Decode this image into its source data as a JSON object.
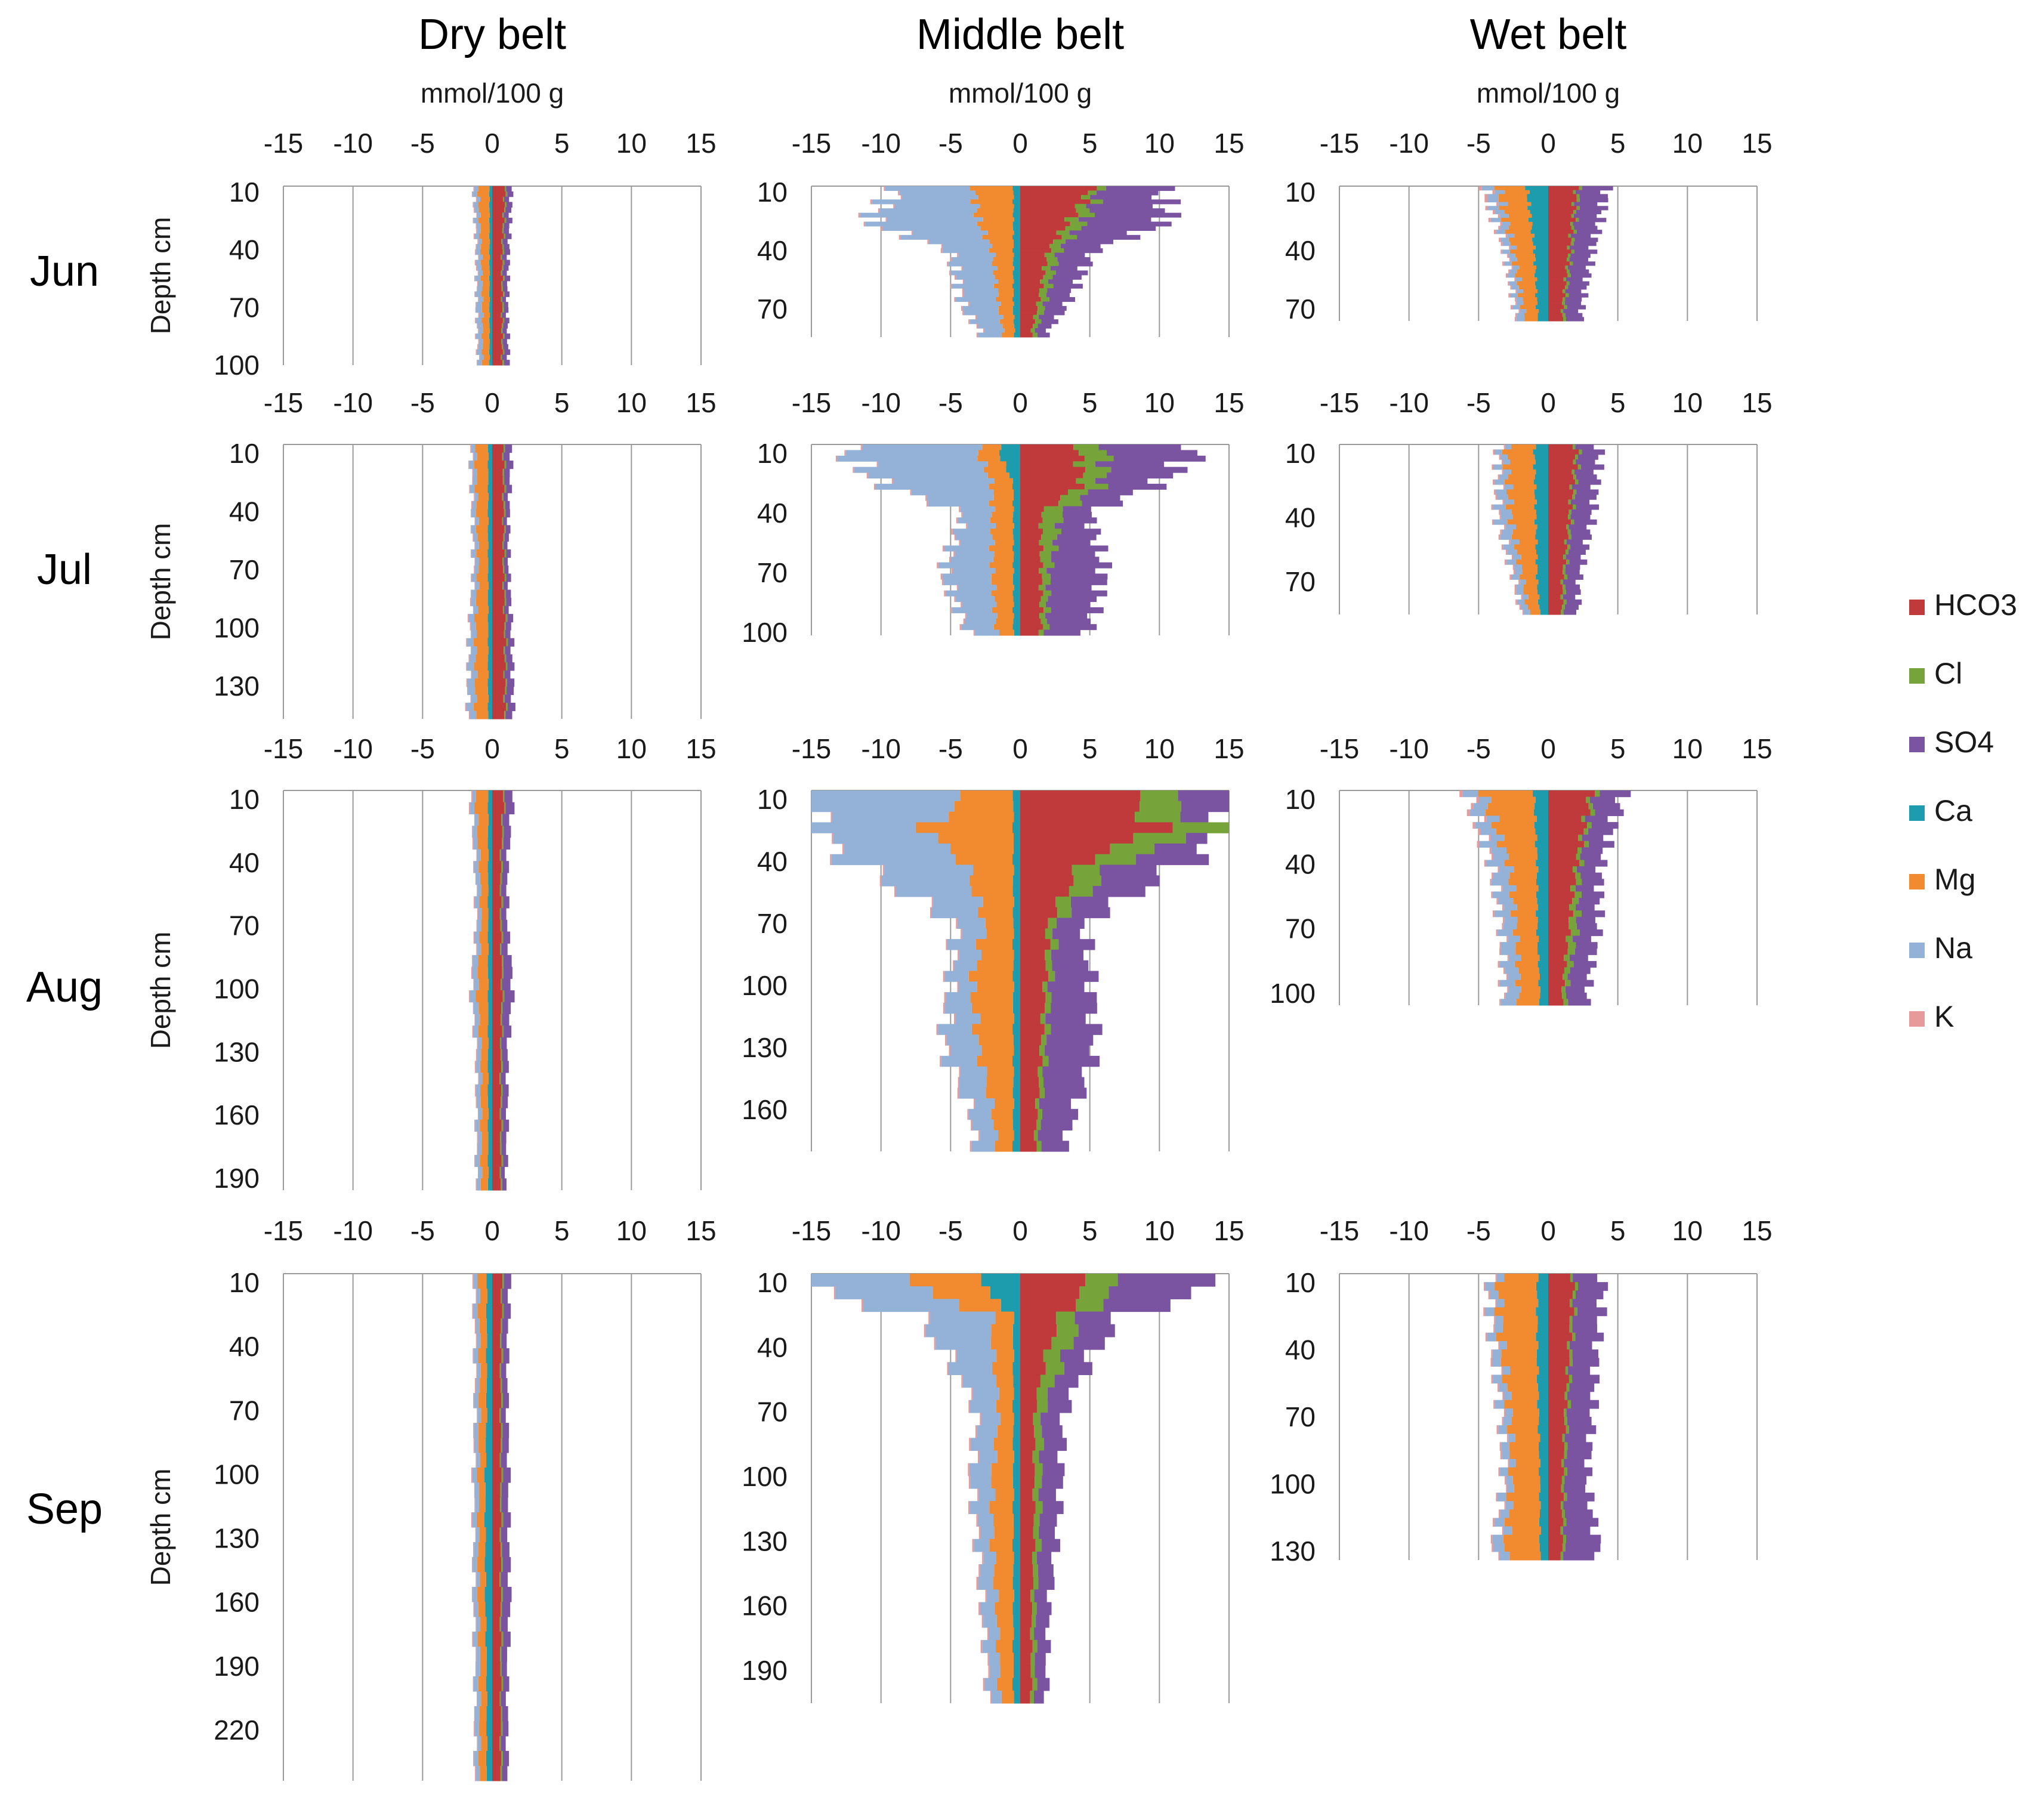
{
  "chart_data": {
    "type": "bar",
    "subtype": "diverging-stacked-horizontal",
    "belt_titles": [
      "Dry belt",
      "Middle belt",
      "Wet belt"
    ],
    "unit_label": "mmol/100 g",
    "months": [
      "Jun",
      "Jul",
      "Aug",
      "Sep"
    ],
    "ylabel": "Depth cm",
    "xlim": [
      -15,
      15
    ],
    "xticks": [
      -15,
      -10,
      -5,
      0,
      5,
      10,
      15
    ],
    "tick_labels": [
      "-15",
      "-10",
      "-5",
      "0",
      "5",
      "10",
      "15"
    ],
    "anions": [
      "HCO3",
      "Cl",
      "SO4"
    ],
    "cations": [
      "Ca",
      "Mg",
      "Na",
      "K"
    ],
    "legend": [
      {
        "name": "HCO3",
        "color": "#c0393b"
      },
      {
        "name": "Cl",
        "color": "#77a33b"
      },
      {
        "name": "SO4",
        "color": "#7a54a0"
      },
      {
        "name": "Ca",
        "color": "#1c9cac"
      },
      {
        "name": "Mg",
        "color": "#f28a30"
      },
      {
        "name": "Na",
        "color": "#94b2d8"
      },
      {
        "name": "K",
        "color": "#e69a9a"
      }
    ],
    "panels": [
      {
        "belt": "Dry belt",
        "month": "Jun",
        "depth_labels": [
          "10",
          "40",
          "70",
          "100"
        ],
        "anion_profile": [
          [
            10,
            0.9,
            0.1,
            0.4
          ],
          [
            40,
            0.7,
            0.1,
            0.4
          ],
          [
            70,
            0.7,
            0.1,
            0.3
          ],
          [
            100,
            0.7,
            0.1,
            0.4
          ]
        ],
        "cation_profile": [
          [
            10,
            0.2,
            0.8,
            0.3,
            0.05
          ],
          [
            40,
            0.2,
            0.6,
            0.3,
            0.05
          ],
          [
            70,
            0.2,
            0.5,
            0.4,
            0.05
          ],
          [
            100,
            0.2,
            0.5,
            0.3,
            0.05
          ]
        ]
      },
      {
        "belt": "Middle belt",
        "month": "Jun",
        "depth_labels": [
          "10",
          "40",
          "70"
        ],
        "anion_profile": [
          [
            10,
            5.0,
            0.6,
            4.5
          ],
          [
            25,
            3.5,
            1.2,
            6.0
          ],
          [
            40,
            2.0,
            0.8,
            2.5
          ],
          [
            70,
            1.2,
            0.5,
            1.5
          ],
          [
            82,
            0.8,
            0.3,
            0.8
          ]
        ],
        "cation_profile": [
          [
            10,
            0.5,
            2.8,
            5.5,
            0.1
          ],
          [
            25,
            0.5,
            2.5,
            8.0,
            0.1
          ],
          [
            40,
            0.5,
            1.5,
            3.0,
            0.1
          ],
          [
            70,
            0.5,
            1.0,
            2.5,
            0.1
          ],
          [
            82,
            0.4,
            0.8,
            1.5,
            0.1
          ]
        ]
      },
      {
        "belt": "Wet belt",
        "month": "Jun",
        "depth_labels": [
          "10",
          "40",
          "70"
        ],
        "anion_profile": [
          [
            10,
            2.0,
            0.2,
            2.0
          ],
          [
            40,
            1.5,
            0.2,
            1.5
          ],
          [
            70,
            1.0,
            0.2,
            1.2
          ],
          [
            80,
            1.0,
            0.2,
            1.2
          ]
        ],
        "cation_profile": [
          [
            10,
            1.5,
            2.0,
            0.8,
            0.2
          ],
          [
            40,
            1.0,
            1.5,
            0.5,
            0.1
          ],
          [
            70,
            0.8,
            1.0,
            0.5,
            0.1
          ],
          [
            80,
            0.6,
            0.8,
            0.6,
            0.1
          ]
        ]
      },
      {
        "belt": "Dry belt",
        "month": "Jul",
        "depth_labels": [
          "10",
          "40",
          "70",
          "100",
          "130"
        ],
        "anion_profile": [
          [
            10,
            0.8,
            0.1,
            0.5
          ],
          [
            40,
            0.8,
            0.1,
            0.3
          ],
          [
            70,
            0.8,
            0.1,
            0.3
          ],
          [
            100,
            0.9,
            0.1,
            0.4
          ],
          [
            130,
            0.9,
            0.1,
            0.5
          ]
        ],
        "cation_profile": [
          [
            10,
            0.3,
            0.9,
            0.3,
            0.05
          ],
          [
            40,
            0.3,
            0.8,
            0.3,
            0.05
          ],
          [
            70,
            0.3,
            0.7,
            0.3,
            0.05
          ],
          [
            100,
            0.3,
            0.9,
            0.4,
            0.05
          ],
          [
            130,
            0.3,
            0.9,
            0.5,
            0.05
          ]
        ]
      },
      {
        "belt": "Middle belt",
        "month": "Jul",
        "depth_labels": [
          "10",
          "40",
          "70",
          "100"
        ],
        "anion_profile": [
          [
            10,
            4.2,
            2.0,
            6.5
          ],
          [
            25,
            4.5,
            1.5,
            4.0
          ],
          [
            40,
            1.5,
            1.5,
            2.0
          ],
          [
            70,
            1.5,
            0.6,
            4.0
          ],
          [
            100,
            1.5,
            0.4,
            3.0
          ]
        ],
        "cation_profile": [
          [
            10,
            1.5,
            1.5,
            9.5,
            0.1
          ],
          [
            25,
            0.5,
            1.5,
            8.0,
            0.1
          ],
          [
            40,
            0.5,
            1.5,
            2.0,
            0.1
          ],
          [
            70,
            0.5,
            1.5,
            3.5,
            0.1
          ],
          [
            100,
            0.5,
            1.2,
            2.0,
            0.1
          ]
        ]
      },
      {
        "belt": "Wet belt",
        "month": "Jul",
        "depth_labels": [
          "10",
          "40",
          "70"
        ],
        "anion_profile": [
          [
            10,
            2.0,
            0.2,
            1.5
          ],
          [
            40,
            1.5,
            0.2,
            1.5
          ],
          [
            70,
            1.0,
            0.2,
            1.0
          ],
          [
            85,
            1.0,
            0.2,
            1.0
          ]
        ],
        "cation_profile": [
          [
            10,
            1.0,
            2.0,
            0.5,
            0.1
          ],
          [
            40,
            0.9,
            1.8,
            0.9,
            0.1
          ],
          [
            70,
            0.8,
            1.0,
            0.5,
            0.1
          ],
          [
            85,
            0.6,
            0.8,
            0.5,
            0.1
          ]
        ]
      },
      {
        "belt": "Dry belt",
        "month": "Aug",
        "depth_labels": [
          "10",
          "40",
          "70",
          "100",
          "130",
          "160",
          "190"
        ],
        "anion_profile": [
          [
            10,
            0.8,
            0.1,
            0.6
          ],
          [
            40,
            0.6,
            0.1,
            0.4
          ],
          [
            70,
            0.6,
            0.1,
            0.4
          ],
          [
            100,
            0.7,
            0.1,
            0.7
          ],
          [
            130,
            0.6,
            0.1,
            0.4
          ],
          [
            160,
            0.6,
            0.1,
            0.4
          ],
          [
            190,
            0.6,
            0.1,
            0.3
          ]
        ],
        "cation_profile": [
          [
            10,
            0.3,
            0.9,
            0.3,
            0.05
          ],
          [
            40,
            0.3,
            0.6,
            0.3,
            0.05
          ],
          [
            70,
            0.3,
            0.5,
            0.3,
            0.05
          ],
          [
            100,
            0.3,
            0.8,
            0.4,
            0.05
          ],
          [
            130,
            0.3,
            0.5,
            0.3,
            0.05
          ],
          [
            160,
            0.3,
            0.5,
            0.3,
            0.05
          ],
          [
            190,
            0.3,
            0.5,
            0.3,
            0.05
          ]
        ]
      },
      {
        "belt": "Middle belt",
        "month": "Aug",
        "depth_labels": [
          "10",
          "40",
          "70",
          "100",
          "130",
          "160"
        ],
        "anion_profile": [
          [
            10,
            8.0,
            2.5,
            4.5
          ],
          [
            25,
            10.0,
            4.5,
            0.5
          ],
          [
            40,
            4.5,
            2.5,
            5.0
          ],
          [
            70,
            2.0,
            0.6,
            2.0
          ],
          [
            100,
            1.8,
            0.4,
            3.0
          ],
          [
            130,
            1.5,
            0.4,
            3.5
          ],
          [
            160,
            1.2,
            0.3,
            2.5
          ],
          [
            185,
            1.0,
            0.3,
            1.5
          ]
        ],
        "cation_profile": [
          [
            10,
            0.5,
            3.5,
            11.0,
            0.1
          ],
          [
            25,
            0.5,
            6.5,
            8.0,
            0.1
          ],
          [
            40,
            0.5,
            3.5,
            8.0,
            0.1
          ],
          [
            70,
            0.5,
            2.0,
            2.0,
            0.1
          ],
          [
            100,
            0.5,
            3.0,
            1.5,
            0.1
          ],
          [
            130,
            0.5,
            2.5,
            2.5,
            0.1
          ],
          [
            160,
            0.5,
            1.5,
            1.5,
            0.1
          ],
          [
            185,
            0.5,
            1.0,
            1.5,
            0.1
          ]
        ]
      },
      {
        "belt": "Wet belt",
        "month": "Aug",
        "depth_labels": [
          "10",
          "40",
          "70",
          "100"
        ],
        "anion_profile": [
          [
            10,
            3.0,
            0.3,
            2.0
          ],
          [
            40,
            2.0,
            0.3,
            1.5
          ],
          [
            70,
            1.5,
            0.6,
            1.5
          ],
          [
            100,
            1.0,
            0.3,
            1.5
          ]
        ],
        "cation_profile": [
          [
            10,
            1.0,
            3.5,
            1.0,
            0.2
          ],
          [
            40,
            0.8,
            2.0,
            1.2,
            0.1
          ],
          [
            70,
            0.8,
            1.5,
            1.0,
            0.1
          ],
          [
            100,
            0.6,
            1.5,
            1.0,
            0.1
          ]
        ]
      },
      {
        "belt": "Dry belt",
        "month": "Sep",
        "depth_labels": [
          "10",
          "40",
          "70",
          "100",
          "130",
          "160",
          "190",
          "220"
        ],
        "anion_profile": [
          [
            10,
            0.7,
            0.1,
            0.5
          ],
          [
            40,
            0.6,
            0.1,
            0.4
          ],
          [
            70,
            0.6,
            0.1,
            0.4
          ],
          [
            100,
            0.6,
            0.1,
            0.5
          ],
          [
            130,
            0.6,
            0.1,
            0.5
          ],
          [
            160,
            0.6,
            0.1,
            0.6
          ],
          [
            190,
            0.6,
            0.1,
            0.4
          ],
          [
            220,
            0.6,
            0.1,
            0.4
          ]
        ],
        "cation_profile": [
          [
            10,
            0.4,
            0.6,
            0.3,
            0.05
          ],
          [
            40,
            0.4,
            0.5,
            0.3,
            0.05
          ],
          [
            70,
            0.4,
            0.5,
            0.3,
            0.05
          ],
          [
            100,
            0.5,
            0.5,
            0.3,
            0.05
          ],
          [
            130,
            0.5,
            0.5,
            0.3,
            0.05
          ],
          [
            160,
            0.5,
            0.5,
            0.3,
            0.05
          ],
          [
            190,
            0.4,
            0.5,
            0.3,
            0.05
          ],
          [
            220,
            0.4,
            0.5,
            0.3,
            0.05
          ]
        ]
      },
      {
        "belt": "Middle belt",
        "month": "Sep",
        "depth_labels": [
          "10",
          "40",
          "70",
          "100",
          "130",
          "160",
          "190"
        ],
        "anion_profile": [
          [
            10,
            5.0,
            2.5,
            7.5
          ],
          [
            25,
            3.0,
            1.5,
            3.0
          ],
          [
            40,
            2.0,
            1.5,
            2.0
          ],
          [
            70,
            1.0,
            0.6,
            1.5
          ],
          [
            100,
            1.0,
            0.5,
            1.5
          ],
          [
            130,
            1.0,
            0.4,
            1.2
          ],
          [
            160,
            0.8,
            0.3,
            1.0
          ],
          [
            190,
            0.8,
            0.3,
            0.8
          ],
          [
            205,
            0.8,
            0.3,
            0.8
          ]
        ],
        "cation_profile": [
          [
            10,
            3.0,
            5.5,
            8.0,
            0.1
          ],
          [
            25,
            0.5,
            1.5,
            5.5,
            0.1
          ],
          [
            40,
            0.5,
            1.5,
            3.5,
            0.1
          ],
          [
            70,
            0.5,
            1.0,
            1.5,
            0.1
          ],
          [
            100,
            0.5,
            1.5,
            1.5,
            0.1
          ],
          [
            130,
            0.5,
            1.5,
            1.0,
            0.1
          ],
          [
            160,
            0.5,
            1.2,
            1.0,
            0.1
          ],
          [
            190,
            0.5,
            1.0,
            0.8,
            0.1
          ],
          [
            205,
            0.5,
            1.0,
            0.8,
            0.1
          ]
        ]
      },
      {
        "belt": "Wet belt",
        "month": "Sep",
        "depth_labels": [
          "10",
          "40",
          "70",
          "100",
          "130"
        ],
        "anion_profile": [
          [
            10,
            1.8,
            0.2,
            2.0
          ],
          [
            40,
            1.5,
            0.2,
            1.8
          ],
          [
            70,
            1.2,
            0.2,
            1.8
          ],
          [
            100,
            1.0,
            0.2,
            1.6
          ],
          [
            130,
            1.0,
            0.2,
            2.5
          ],
          [
            140,
            1.0,
            0.2,
            2.5
          ]
        ],
        "cation_profile": [
          [
            10,
            0.8,
            2.8,
            0.6,
            0.1
          ],
          [
            40,
            0.8,
            2.5,
            0.6,
            0.1
          ],
          [
            70,
            0.7,
            2.0,
            0.6,
            0.1
          ],
          [
            100,
            0.6,
            2.0,
            0.5,
            0.1
          ],
          [
            130,
            0.6,
            2.5,
            0.8,
            0.1
          ],
          [
            140,
            0.6,
            2.5,
            0.8,
            0.1
          ]
        ]
      }
    ]
  }
}
